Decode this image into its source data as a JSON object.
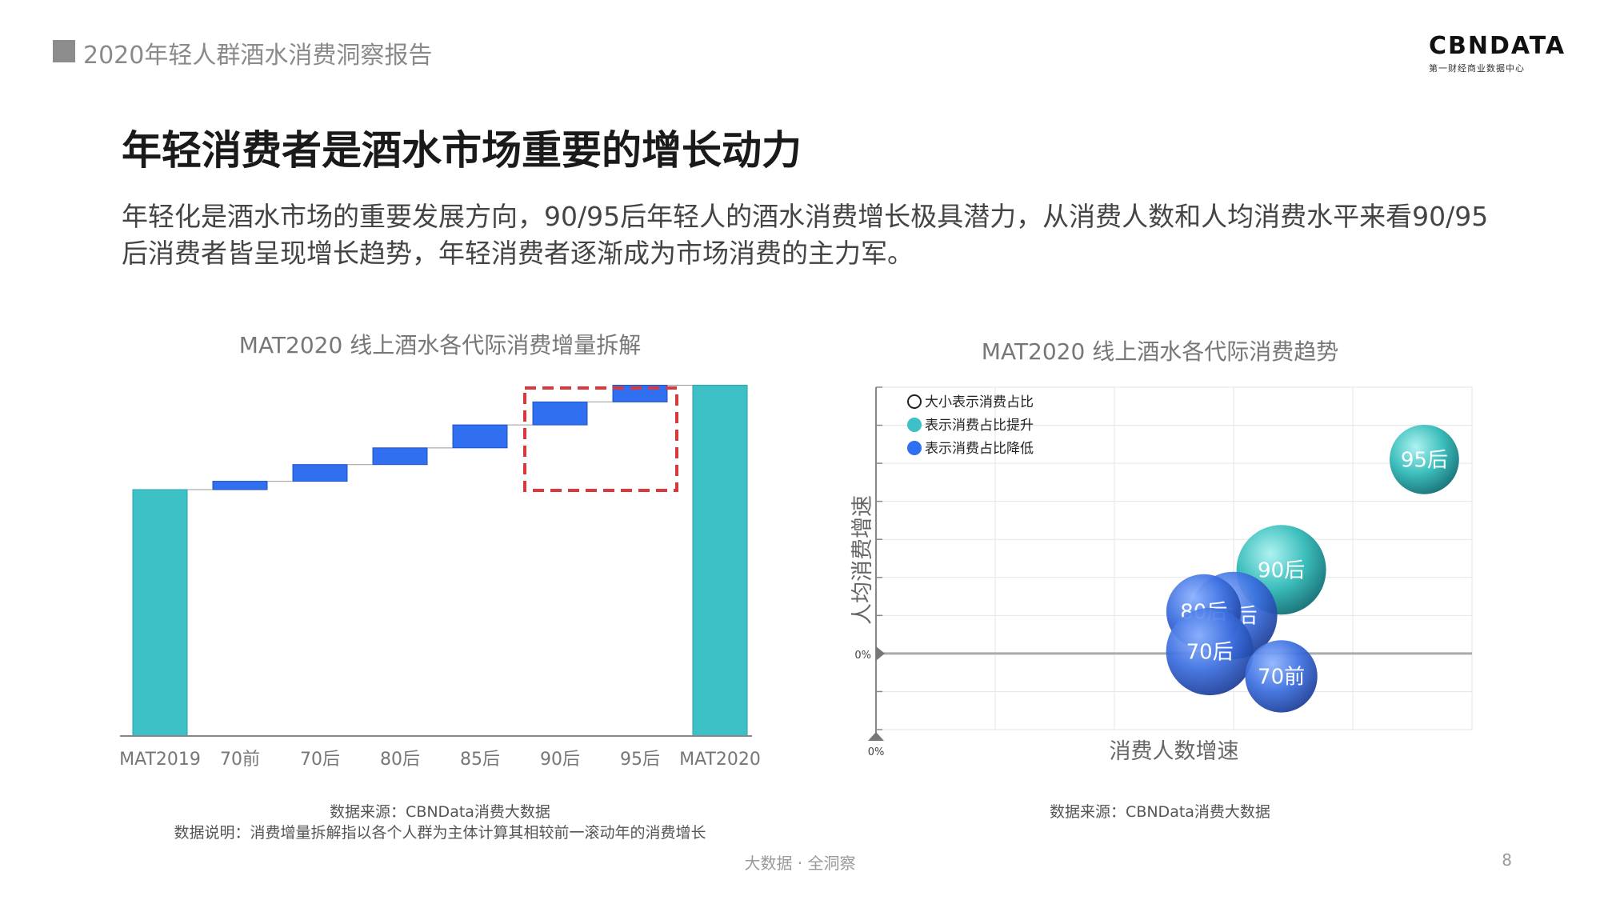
{
  "header": {
    "report_title": "2020年轻人群酒水消费洞察报告",
    "logo": "CBNDATA",
    "logo_sub": "第一财经商业数据中心"
  },
  "main_title": "年轻消费者是酒水市场重要的增长动力",
  "description": "年轻化是酒水市场的重要发展方向，90/95后年轻人的酒水消费增长极具潜力，从消费人数和人均消费水平来看90/95后消费者皆呈现增长趋势，年轻消费者逐渐成为市场消费的主力军。",
  "colors": {
    "teal": "#3ec1c6",
    "blue": "#2f6ff0",
    "highlight": "#d9383d"
  },
  "left_chart": {
    "title": "MAT2020 线上酒水各代际消费增量拆解",
    "source": "数据来源：CBNData消费大数据",
    "explanation": "数据说明：消费增量拆解指以各个人群为主体计算其相较前一滚动年的消费增长"
  },
  "right_chart": {
    "title": "MAT2020 线上酒水各代际消费趋势",
    "source": "数据来源：CBNData消费大数据",
    "xlabel": "消费人数增速",
    "ylabel": "人均消费增速",
    "zero_x": "0%",
    "zero_y": "0%",
    "legend": [
      "大小表示消费占比",
      "表示消费占比提升",
      "表示消费占比降低"
    ]
  },
  "chart_data": [
    {
      "type": "bar",
      "subtype": "waterfall",
      "title": "MAT2020 线上酒水各代际消费增量拆解",
      "categories": [
        "MAT2019",
        "70前",
        "70后",
        "80后",
        "85后",
        "90后",
        "95后",
        "MAT2020"
      ],
      "values": [
        59,
        2,
        4,
        4,
        5.5,
        5.5,
        4,
        84
      ],
      "kinds": [
        "total",
        "delta",
        "delta",
        "delta",
        "delta",
        "delta",
        "delta",
        "total"
      ],
      "ylim": [
        0,
        100
      ],
      "highlighted": [
        "90后",
        "95后"
      ]
    },
    {
      "type": "scatter",
      "subtype": "bubble",
      "title": "MAT2020 线上酒水各代际消费趋势",
      "xlabel": "消费人数增速",
      "ylabel": "人均消费增速",
      "xlim": [
        0,
        5
      ],
      "ylim": [
        -2,
        7
      ],
      "grid": true,
      "legend_position": "top-left",
      "points": [
        {
          "name": "95后",
          "x": 4.6,
          "y": 5.1,
          "size": 0.6,
          "trend": "up"
        },
        {
          "name": "90后",
          "x": 3.4,
          "y": 2.2,
          "size": 1.0,
          "trend": "up"
        },
        {
          "name": "85后",
          "x": 3.0,
          "y": 1.0,
          "size": 0.95,
          "trend": "down"
        },
        {
          "name": "80后",
          "x": 2.75,
          "y": 1.1,
          "size": 0.7,
          "trend": "down"
        },
        {
          "name": "70后",
          "x": 2.8,
          "y": 0.05,
          "size": 0.95,
          "trend": "down"
        },
        {
          "name": "70前",
          "x": 3.4,
          "y": -0.6,
          "size": 0.65,
          "trend": "down"
        }
      ]
    }
  ],
  "footer": {
    "slogan": "大数据 · 全洞察",
    "page": "8"
  }
}
